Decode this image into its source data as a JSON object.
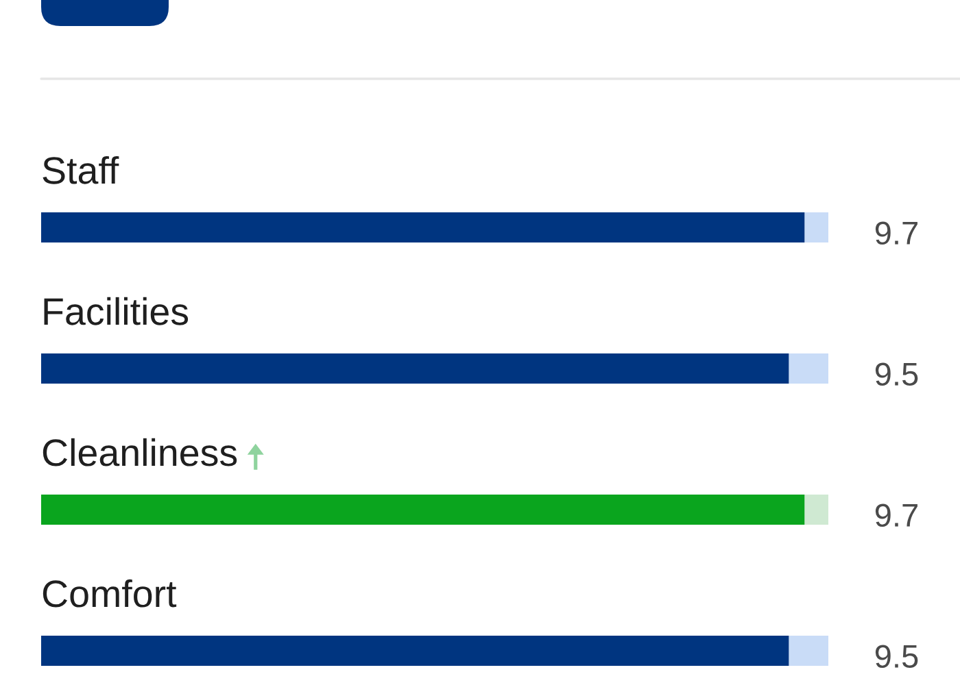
{
  "chart_data": {
    "type": "bar",
    "orientation": "horizontal",
    "stacked": true,
    "categories": [
      "Staff",
      "Facilities",
      "Cleanliness",
      "Comfort"
    ],
    "series": [
      {
        "colors": [
          "#003580",
          "#003580",
          "#0aa51e",
          "#003580"
        ],
        "values": [
          9.7,
          9.5,
          9.7,
          9.5
        ],
        "value_labels": [
          "9.7",
          "9.5",
          "9.7",
          "9.5"
        ]
      },
      {
        "colors": [
          "#c9dcf7",
          "#c9dcf7",
          "#cfe9d2",
          "#c9dcf7"
        ],
        "values": [
          0.3,
          0.5,
          0.3,
          0.5
        ]
      }
    ],
    "xlim": [
      0,
      10
    ],
    "tick_labels": "y"
  }
}
